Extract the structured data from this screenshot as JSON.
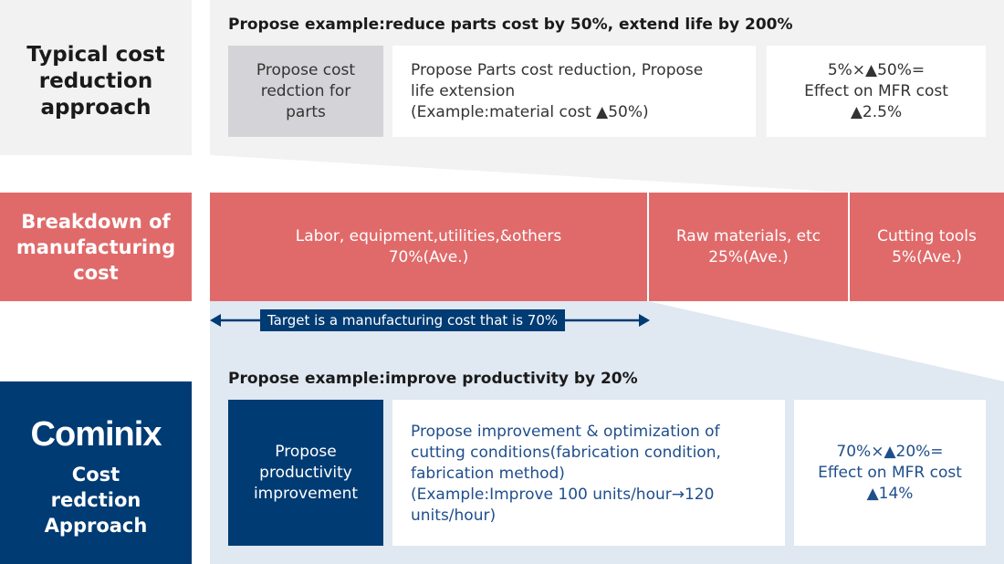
{
  "left": {
    "typical": "Typical cost\nreduction\napproach",
    "breakdown": "Breakdown of\nmanufacturing\ncost",
    "logo_text": "Cominix",
    "cominix_sub": "Cost\nredction\nApproach"
  },
  "top": {
    "title": "Propose example:reduce parts cost by 50%, extend life by 200%",
    "box1": "Propose cost\nredction for\nparts",
    "box2": "Propose Parts cost reduction, Propose\nlife extension\n(Example:material cost ▲50%)",
    "box3": "5%×▲50%=\nEffect on MFR cost\n▲2.5%"
  },
  "breakdown": {
    "a": "Labor, equipment,utilities,&others\n70%(Ave.)",
    "b": "Raw materials, etc\n25%(Ave.)",
    "c": "Cutting tools\n5%(Ave.)"
  },
  "arrow_label": "Target is a manufacturing cost that is 70%",
  "bottom": {
    "title": "Propose example:improve productivity by 20%",
    "box1": "Propose\nproductivity\nimprovement",
    "box2": "Propose improvement & optimization of\ncutting conditions(fabrication condition,\nfabrication method)\n(Example:Improve 100 units/hour→120\nunits/hour)",
    "box3": "70%×▲20%=\nEffect on MFR cost\n▲14%"
  },
  "colors": {
    "red": "#e06a6a",
    "navy": "#003b73",
    "light_gray": "#f2f2f2",
    "light_blue": "#e0e8f2",
    "blue_text": "#1f4e8c"
  }
}
